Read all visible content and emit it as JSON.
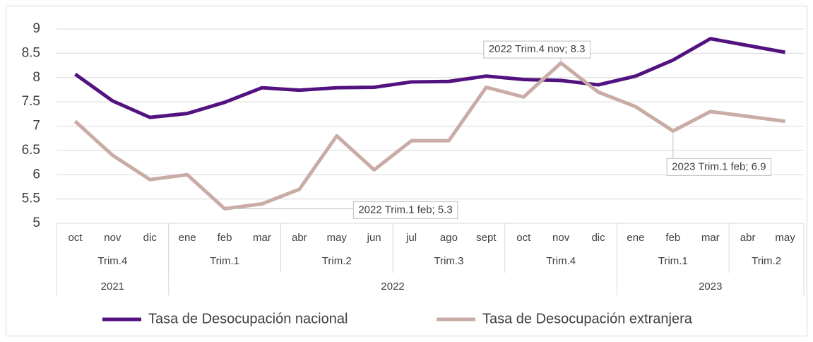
{
  "chart_data": {
    "type": "line",
    "categories": [
      "oct",
      "nov",
      "dic",
      "ene",
      "feb",
      "mar",
      "abr",
      "may",
      "jun",
      "jul",
      "ago",
      "sept",
      "oct",
      "nov",
      "dic",
      "ene",
      "feb",
      "mar",
      "abr",
      "may"
    ],
    "quarters": [
      "Trim.4",
      null,
      null,
      "Trim.1",
      null,
      null,
      "Trim.2",
      null,
      null,
      "Trim.3",
      null,
      null,
      "Trim.4",
      null,
      null,
      "Trim.1",
      null,
      null,
      "Trim.2",
      null
    ],
    "years": [
      "2021",
      null,
      null,
      "2022",
      null,
      null,
      null,
      null,
      null,
      null,
      null,
      null,
      null,
      null,
      null,
      "2023",
      null,
      null,
      null,
      null
    ],
    "series": [
      {
        "name": "Tasa de Desocupación nacional",
        "color": "#52127f",
        "values": [
          8.07,
          7.52,
          7.18,
          7.26,
          7.49,
          7.79,
          7.74,
          7.79,
          7.8,
          7.91,
          7.92,
          8.03,
          7.96,
          7.94,
          7.85,
          8.03,
          8.36,
          8.8,
          8.66,
          8.52
        ]
      },
      {
        "name": "Tasa de Desocupación extranjera",
        "color": "#c9aca6",
        "values": [
          7.1,
          6.4,
          5.9,
          6.0,
          5.3,
          5.4,
          5.7,
          6.8,
          6.1,
          6.7,
          6.7,
          7.8,
          7.6,
          8.3,
          7.7,
          7.4,
          6.9,
          7.3,
          7.2,
          7.1
        ],
        "value_labels": [
          null,
          null,
          null,
          null,
          "2022 Trim.1 feb; 5.3",
          null,
          null,
          null,
          null,
          null,
          null,
          null,
          null,
          "2022 Trim.4 nov; 8.3",
          null,
          null,
          "2023 Trim.1 feb; 6.9",
          null,
          null,
          null
        ]
      }
    ],
    "ylim": [
      5,
      9
    ],
    "yticks": [
      5,
      5.5,
      6,
      6.5,
      7,
      7.5,
      8,
      8.5,
      9
    ],
    "grid": true,
    "legend": "bottom"
  }
}
